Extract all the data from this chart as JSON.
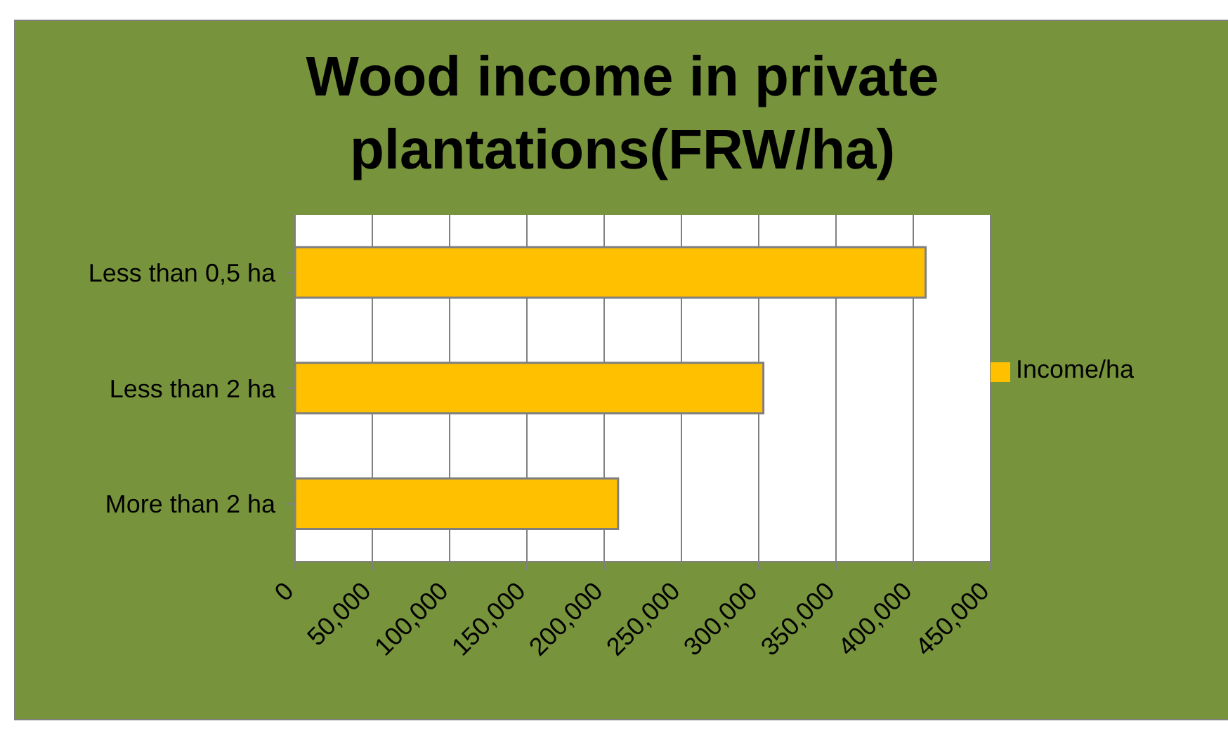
{
  "chart_data": {
    "type": "bar",
    "orientation": "horizontal",
    "title": "Wood income in private plantations(FRW/ha)",
    "categories": [
      "Less than 0,5 ha",
      "Less than 2 ha",
      "More than 2 ha"
    ],
    "series": [
      {
        "name": "Income/ha",
        "color": "#ffc000",
        "values": [
          408000,
          303000,
          209000
        ]
      }
    ],
    "xlim": [
      0,
      450000
    ],
    "xticks": [
      0,
      {
        "value": 50000,
        "label": "50,000"
      },
      {
        "value": 100000,
        "label": "100,000"
      },
      {
        "value": 150000,
        "label": "150,000"
      },
      {
        "value": 200000,
        "label": "200,000"
      },
      {
        "value": 250000,
        "label": "250,000"
      },
      {
        "value": 300000,
        "label": "300,000"
      },
      {
        "value": 350000,
        "label": "350,000"
      },
      {
        "value": 400000,
        "label": "400,000"
      },
      {
        "value": 450000,
        "label": "450,000"
      }
    ],
    "grid": "x",
    "legend": "right"
  }
}
